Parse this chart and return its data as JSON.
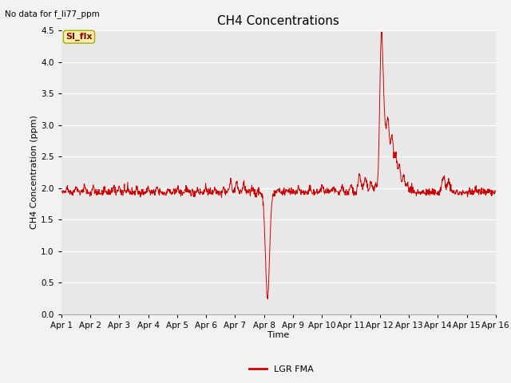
{
  "title": "CH4 Concentrations",
  "xlabel": "Time",
  "ylabel": "CH4 Concentration (ppm)",
  "ylim": [
    0.0,
    4.5
  ],
  "yticks": [
    0.0,
    0.5,
    1.0,
    1.5,
    2.0,
    2.5,
    3.0,
    3.5,
    4.0,
    4.5
  ],
  "xtick_labels": [
    "Apr 1",
    "Apr 2",
    "Apr 3",
    "Apr 4",
    "Apr 5",
    "Apr 6",
    "Apr 7",
    "Apr 8",
    "Apr 9",
    "Apr 10",
    "Apr 11",
    "Apr 12",
    "Apr 13",
    "Apr 14",
    "Apr 15",
    "Apr 16"
  ],
  "line_color": "#cc0000",
  "line_width": 0.7,
  "fig_bg_color": "#f2f2f2",
  "plot_bg_color": "#e8e8e8",
  "top_left_text": "No data for f_li77_ppm",
  "si_flx_label": "SI_flx",
  "legend_label": "LGR FMA",
  "title_fontsize": 11,
  "axis_label_fontsize": 8,
  "tick_fontsize": 7.5
}
